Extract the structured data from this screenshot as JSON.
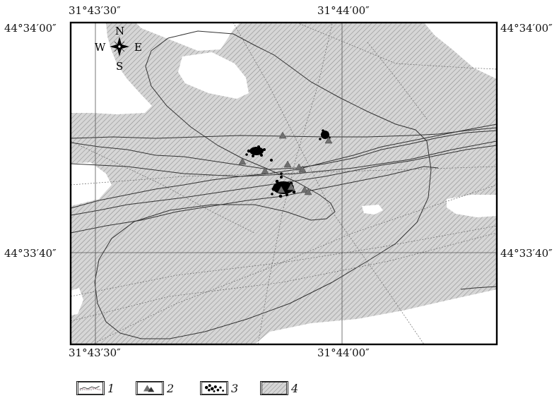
{
  "map": {
    "lon_labels": {
      "top_left": "31°43′30″",
      "top_right": "31°44′00″",
      "bottom_left": "31°43′30″",
      "bottom_right": "31°44′00″"
    },
    "lat_labels": {
      "left_top": "44°34′00″",
      "left_bottom": "44°33′40″",
      "right_top": "44°34′00″",
      "right_bottom": "44°33′40″"
    },
    "compass": {
      "n": "N",
      "s": "S",
      "e": "E",
      "w": "W",
      "icon": "compass-rose-icon"
    },
    "colors": {
      "hatch_fill": "#d6d6d6",
      "hatch_line": "#8a8a8a",
      "track": "#333333",
      "marker_triangle": "#6f6f6f",
      "marker_dot": "#000000"
    }
  },
  "legend": [
    {
      "number": "1",
      "icon": "track-lines-icon"
    },
    {
      "number": "2",
      "icon": "triangle-marker-icon"
    },
    {
      "number": "3",
      "icon": "black-dots-cluster-icon"
    },
    {
      "number": "4",
      "icon": "hatched-area-icon"
    }
  ]
}
